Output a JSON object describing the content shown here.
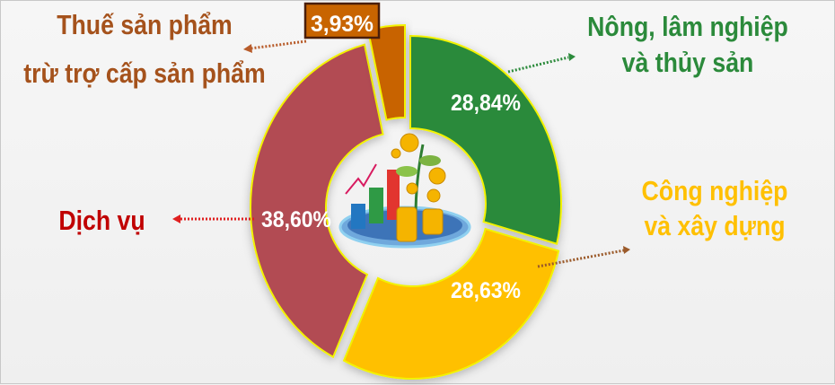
{
  "chart_data": {
    "type": "pie",
    "donut": true,
    "slices": [
      {
        "label_lines": [
          "Nông, lâm nghiệp",
          "và thủy sản"
        ],
        "value": 28.84,
        "value_label": "28,84%",
        "color": "#2b8a3b",
        "label_color": "#2b8a3b"
      },
      {
        "label_lines": [
          "Công nghiệp",
          "và xây dựng"
        ],
        "value": 28.63,
        "value_label": "28,63%",
        "color": "#ffc000",
        "label_color": "#ffc000"
      },
      {
        "label_lines": [
          "Dịch vụ"
        ],
        "value": 38.6,
        "value_label": "38,60%",
        "color": "#b24b53",
        "label_color": "#c00000"
      },
      {
        "label_lines": [
          "Thuế sản phẩm",
          "trừ trợ cấp sản phẩm"
        ],
        "value": 3.93,
        "value_label": "3,93%",
        "color": "#c86400",
        "label_color": "#a5521c"
      }
    ],
    "start_angle": "top",
    "direction": "clockwise",
    "slice_outline_color": "#f2f200",
    "center_icon": "finance-growth-coins-chart-icon"
  }
}
